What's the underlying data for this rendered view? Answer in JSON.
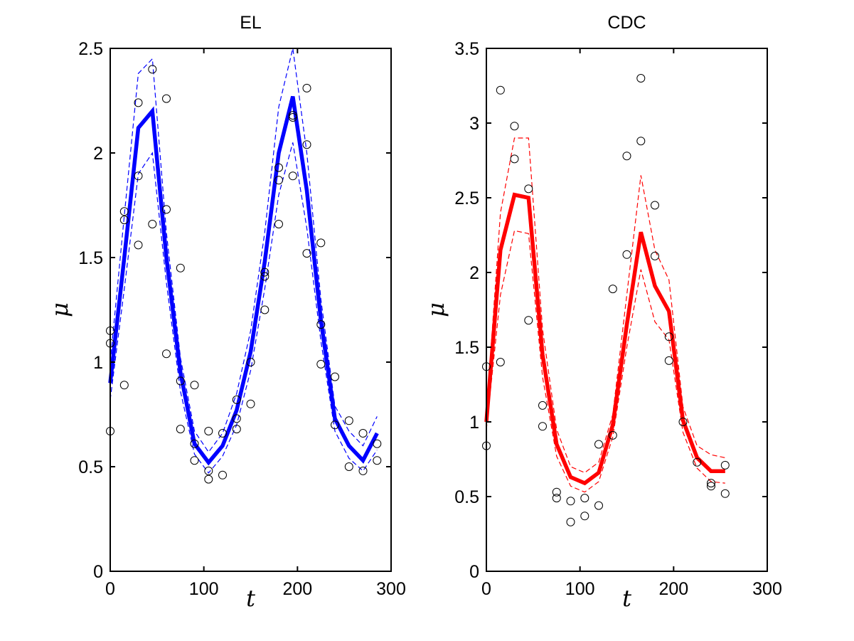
{
  "chart_data": [
    {
      "type": "line",
      "title": "EL",
      "xlabel": "t",
      "ylabel": "μ",
      "xlim": [
        0,
        300
      ],
      "ylim": [
        0,
        2.5
      ],
      "xticks": [
        0,
        100,
        200,
        300
      ],
      "xtick_labels": [
        "0",
        "100",
        "200",
        "300"
      ],
      "yticks": [
        0,
        0.5,
        1,
        1.5,
        2,
        2.5
      ],
      "ytick_labels": [
        "0",
        "0.5",
        "1",
        "1.5",
        "2",
        "2.5"
      ],
      "grid": false,
      "legend": "none",
      "mean": {
        "color": "#0000ff",
        "x": [
          0,
          15,
          30,
          45,
          60,
          75,
          90,
          105,
          120,
          135,
          150,
          165,
          180,
          195,
          210,
          225,
          240,
          255,
          270,
          285
        ],
        "y": [
          0.9,
          1.5,
          2.12,
          2.2,
          1.5,
          0.95,
          0.61,
          0.52,
          0.6,
          0.77,
          1.05,
          1.48,
          2.0,
          2.27,
          1.82,
          1.2,
          0.73,
          0.6,
          0.53,
          0.66
        ]
      },
      "upper": {
        "color": "#0000ff",
        "x": [
          0,
          15,
          30,
          45,
          60,
          75,
          90,
          105,
          120,
          135,
          150,
          165,
          180,
          195,
          210,
          225,
          240,
          255,
          270,
          285
        ],
        "y": [
          1.0,
          1.7,
          2.38,
          2.45,
          1.62,
          1.02,
          0.67,
          0.57,
          0.66,
          0.85,
          1.15,
          1.62,
          2.22,
          2.5,
          2.0,
          1.3,
          0.79,
          0.67,
          0.6,
          0.74
        ]
      },
      "lower": {
        "color": "#0000ff",
        "x": [
          0,
          15,
          30,
          45,
          60,
          75,
          90,
          105,
          120,
          135,
          150,
          165,
          180,
          195,
          210,
          225,
          240,
          255,
          270,
          285
        ],
        "y": [
          0.82,
          1.35,
          1.9,
          2.0,
          1.38,
          0.86,
          0.56,
          0.47,
          0.55,
          0.7,
          0.96,
          1.35,
          1.8,
          2.05,
          1.64,
          1.1,
          0.67,
          0.54,
          0.48,
          0.58
        ]
      },
      "observations": {
        "color": "#000000",
        "x": [
          0,
          0,
          0,
          15,
          15,
          15,
          30,
          30,
          30,
          45,
          45,
          60,
          60,
          60,
          75,
          75,
          75,
          90,
          90,
          90,
          105,
          105,
          105,
          120,
          120,
          135,
          135,
          135,
          150,
          150,
          165,
          165,
          165,
          180,
          180,
          180,
          195,
          195,
          195,
          210,
          210,
          210,
          225,
          225,
          225,
          240,
          240,
          255,
          255,
          270,
          270,
          285,
          285
        ],
        "y": [
          1.15,
          1.09,
          0.67,
          1.72,
          1.68,
          0.89,
          2.24,
          1.89,
          1.56,
          2.4,
          1.66,
          2.26,
          1.73,
          1.04,
          1.45,
          0.91,
          0.68,
          0.89,
          0.61,
          0.53,
          0.67,
          0.48,
          0.44,
          0.66,
          0.46,
          0.82,
          0.73,
          0.68,
          1.0,
          0.8,
          1.43,
          1.41,
          1.25,
          1.93,
          1.87,
          1.66,
          2.18,
          2.17,
          1.89,
          2.31,
          2.04,
          1.52,
          1.57,
          1.18,
          0.99,
          0.93,
          0.7,
          0.72,
          0.5,
          0.66,
          0.48,
          0.61,
          0.53
        ]
      }
    },
    {
      "type": "line",
      "title": "CDC",
      "xlabel": "t",
      "ylabel": "μ",
      "xlim": [
        0,
        300
      ],
      "ylim": [
        0,
        3.5
      ],
      "xticks": [
        0,
        100,
        200,
        300
      ],
      "xtick_labels": [
        "0",
        "100",
        "200",
        "300"
      ],
      "yticks": [
        0,
        0.5,
        1,
        1.5,
        2,
        2.5,
        3,
        3.5
      ],
      "ytick_labels": [
        "0",
        "0.5",
        "1",
        "1.5",
        "2",
        "2.5",
        "3",
        "3.5"
      ],
      "grid": false,
      "legend": "none",
      "mean": {
        "color": "#ff0000",
        "x": [
          0,
          15,
          30,
          45,
          60,
          75,
          90,
          105,
          120,
          135,
          150,
          165,
          180,
          195,
          210,
          225,
          240,
          255
        ],
        "y": [
          1.0,
          2.15,
          2.52,
          2.5,
          1.45,
          0.85,
          0.63,
          0.59,
          0.66,
          0.98,
          1.65,
          2.27,
          1.91,
          1.74,
          1.01,
          0.76,
          0.67,
          0.67
        ]
      },
      "upper": {
        "color": "#ff0000",
        "x": [
          0,
          15,
          30,
          45,
          60,
          75,
          90,
          105,
          120,
          135,
          150,
          165,
          180,
          195,
          210,
          225,
          240,
          255
        ],
        "y": [
          1.05,
          2.4,
          2.9,
          2.9,
          1.62,
          0.95,
          0.7,
          0.66,
          0.73,
          1.05,
          1.85,
          2.65,
          2.15,
          1.95,
          1.1,
          0.84,
          0.78,
          0.76
        ]
      },
      "lower": {
        "color": "#ff0000",
        "x": [
          0,
          15,
          30,
          45,
          60,
          75,
          90,
          105,
          120,
          135,
          150,
          165,
          180,
          195,
          210,
          225,
          240,
          255
        ],
        "y": [
          0.95,
          1.85,
          2.28,
          2.26,
          1.3,
          0.77,
          0.57,
          0.53,
          0.6,
          0.9,
          1.5,
          2.02,
          1.67,
          1.55,
          0.93,
          0.69,
          0.6,
          0.59
        ]
      },
      "observations": {
        "color": "#000000",
        "x": [
          0,
          0,
          15,
          15,
          30,
          30,
          45,
          45,
          60,
          60,
          75,
          75,
          90,
          90,
          105,
          105,
          120,
          120,
          135,
          135,
          150,
          150,
          165,
          165,
          180,
          180,
          195,
          195,
          210,
          225,
          240,
          240,
          255,
          255
        ],
        "y": [
          1.37,
          0.84,
          3.22,
          1.4,
          2.98,
          2.76,
          2.56,
          1.68,
          1.11,
          0.97,
          0.53,
          0.49,
          0.47,
          0.33,
          0.49,
          0.37,
          0.85,
          0.44,
          1.89,
          0.91,
          2.78,
          2.12,
          3.3,
          2.88,
          2.45,
          2.11,
          1.57,
          1.41,
          1.0,
          0.73,
          0.59,
          0.57,
          0.71,
          0.52
        ]
      }
    }
  ]
}
